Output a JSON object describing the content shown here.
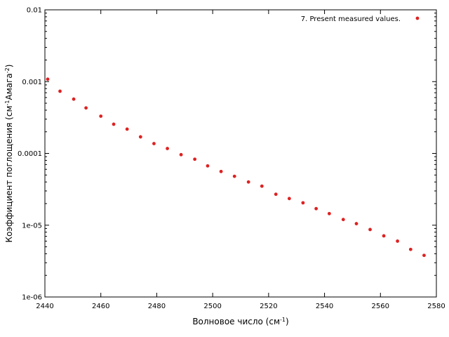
{
  "chart_data": {
    "type": "scatter",
    "title": "",
    "xlabel": "Волновое число (см",
    "xlabel_sup": "-1",
    "xlabel_end": ")",
    "ylabel_parts": [
      "Коэффициент поглощения (см",
      "-1",
      "Амага",
      "-2",
      ")"
    ],
    "xlim": [
      2440,
      2580
    ],
    "ylim": [
      1e-06,
      0.01
    ],
    "yscale": "log",
    "grid": false,
    "legend_position": "top-right",
    "x_ticks": [
      2440,
      2460,
      2480,
      2500,
      2520,
      2540,
      2560,
      2580
    ],
    "y_ticks": [
      {
        "value": 0.01,
        "label": "0.01"
      },
      {
        "value": 0.001,
        "label": "0.001"
      },
      {
        "value": 0.0001,
        "label": "0.0001"
      },
      {
        "value": 1e-05,
        "label": "1e-05"
      },
      {
        "value": 1e-06,
        "label": "1e-06"
      }
    ],
    "series": [
      {
        "name": "7. Present measured values.",
        "color": "#dd2222",
        "x": [
          2441,
          2445.4,
          2450.3,
          2454.7,
          2460,
          2464.6,
          2469.4,
          2474.2,
          2479,
          2483.8,
          2488.7,
          2493.6,
          2498.2,
          2503,
          2507.8,
          2512.8,
          2517.6,
          2522.6,
          2527.4,
          2532.3,
          2537,
          2541.7,
          2546.7,
          2551.4,
          2556.3,
          2561.2,
          2566.1,
          2570.8,
          2575.6
        ],
        "y": [
          0.00108,
          0.000735,
          0.00057,
          0.00043,
          0.00033,
          0.000255,
          0.000218,
          0.00017,
          0.000137,
          0.000117,
          9.6e-05,
          8.3e-05,
          6.7e-05,
          5.6e-05,
          4.8e-05,
          4e-05,
          3.5e-05,
          2.7e-05,
          2.35e-05,
          2.05e-05,
          1.7e-05,
          1.45e-05,
          1.2e-05,
          1.05e-05,
          8.7e-06,
          7.1e-06,
          6e-06,
          4.6e-06,
          3.8e-06
        ]
      }
    ]
  }
}
